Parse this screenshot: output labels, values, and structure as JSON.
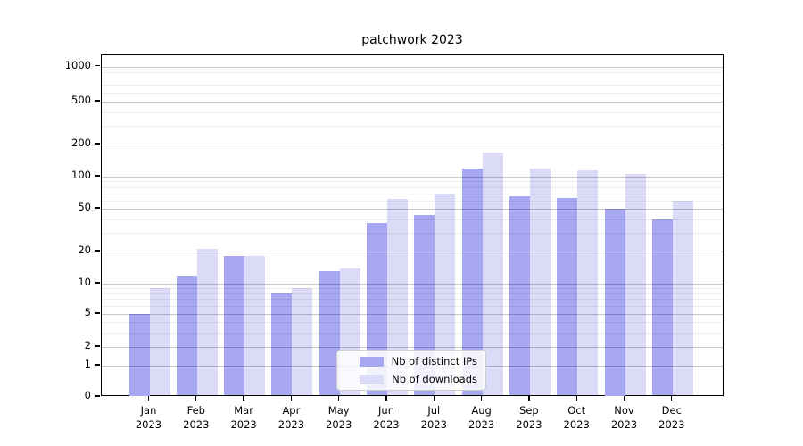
{
  "title": "patchwork 2023",
  "legend": {
    "items": [
      {
        "label": "Nb of distinct IPs",
        "color": "#a7a7f2"
      },
      {
        "label": "Nb of downloads",
        "color": "#dbdbf8"
      }
    ]
  },
  "chart_data": {
    "type": "bar",
    "title": "patchwork 2023",
    "categories": [
      "Jan 2023",
      "Feb 2023",
      "Mar 2023",
      "Apr 2023",
      "May 2023",
      "Jun 2023",
      "Jul 2023",
      "Aug 2023",
      "Sep 2023",
      "Oct 2023",
      "Nov 2023",
      "Dec 2023"
    ],
    "series": [
      {
        "name": "Nb of distinct IPs",
        "color": "#a7a7f2",
        "values": [
          5,
          12,
          18,
          8,
          13,
          37,
          44,
          120,
          65,
          63,
          50,
          40
        ]
      },
      {
        "name": "Nb of downloads",
        "color": "#dbdbf8",
        "values": [
          9,
          21,
          18,
          9,
          14,
          62,
          69,
          167,
          118,
          115,
          105,
          60
        ]
      }
    ],
    "xlabel": "",
    "ylabel": "",
    "yscale": "symlog",
    "yticks": [
      0,
      1,
      2,
      5,
      10,
      20,
      50,
      100,
      200,
      500,
      1000
    ],
    "ylim": [
      0,
      1400
    ],
    "grid": true,
    "legend_position": "lower center"
  }
}
